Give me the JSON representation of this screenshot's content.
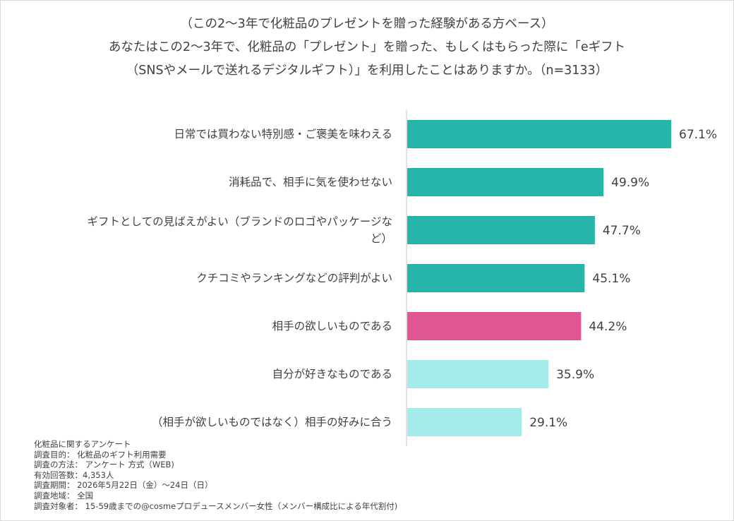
{
  "title_lines": [
    "（この2～3年で化粧品のプレゼントを贈った経験がある方ベース）",
    "あなたはこの2～3年で、化粧品の「プレゼント」を贈った、もしくはもらった際に「eギフト",
    "（SNSやメールで送れるデジタルギフト）」を利用したことはありますか。（n=3133）"
  ],
  "chart_data": {
    "type": "bar",
    "orientation": "horizontal",
    "title": "（この2～3年で化粧品のプレゼントを贈った経験がある方ベース） あなたはこの2～3年で、化粧品の「プレゼント」を贈った、もしくはもらった際に「eギフト （SNSやメールで送れるデジタルギフト）」を利用したことはありますか。（n=3133）",
    "categories": [
      [
        "日常では買わない特別感・ご褒美を味わえる"
      ],
      [
        "消耗品で、相手に気を使わせない"
      ],
      [
        "ギフトとしての見ばえがよい（ブランドのロゴやパッケージな",
        "ど）"
      ],
      [
        "クチコミやランキングなどの評判がよい"
      ],
      [
        "相手の欲しいものである"
      ],
      [
        "自分が好きなものである"
      ],
      [
        "（相手が欲しいものではなく）相手の好みに合う"
      ]
    ],
    "values": [
      67.1,
      49.9,
      47.7,
      45.1,
      44.2,
      35.9,
      29.1
    ],
    "value_labels": [
      "67.1%",
      "49.9%",
      "47.7%",
      "45.1%",
      "44.2%",
      "35.9%",
      "29.1%"
    ],
    "bar_colors": [
      "#26b5a8",
      "#26b5a8",
      "#26b5a8",
      "#26b5a8",
      "#e05694",
      "#a3ebe8",
      "#a3ebe8"
    ],
    "xlim": [
      0,
      67.1
    ],
    "grid": false,
    "legend": "none",
    "axis_color": "#d9d9d9"
  },
  "notes": [
    "化粧品に関するアンケート",
    "調査目的： 化粧品のギフト利用需要",
    "調査の方法： アンケート 方式（WEB)",
    "有効回答数：4,353人",
    "調査期間： 2026年5月22日（金）～24日（日）",
    "調査地域： 全国",
    "調査対象者： 15-59歳までの@cosmeプロデュースメンバー女性（メンバー構成比による年代割付)"
  ]
}
